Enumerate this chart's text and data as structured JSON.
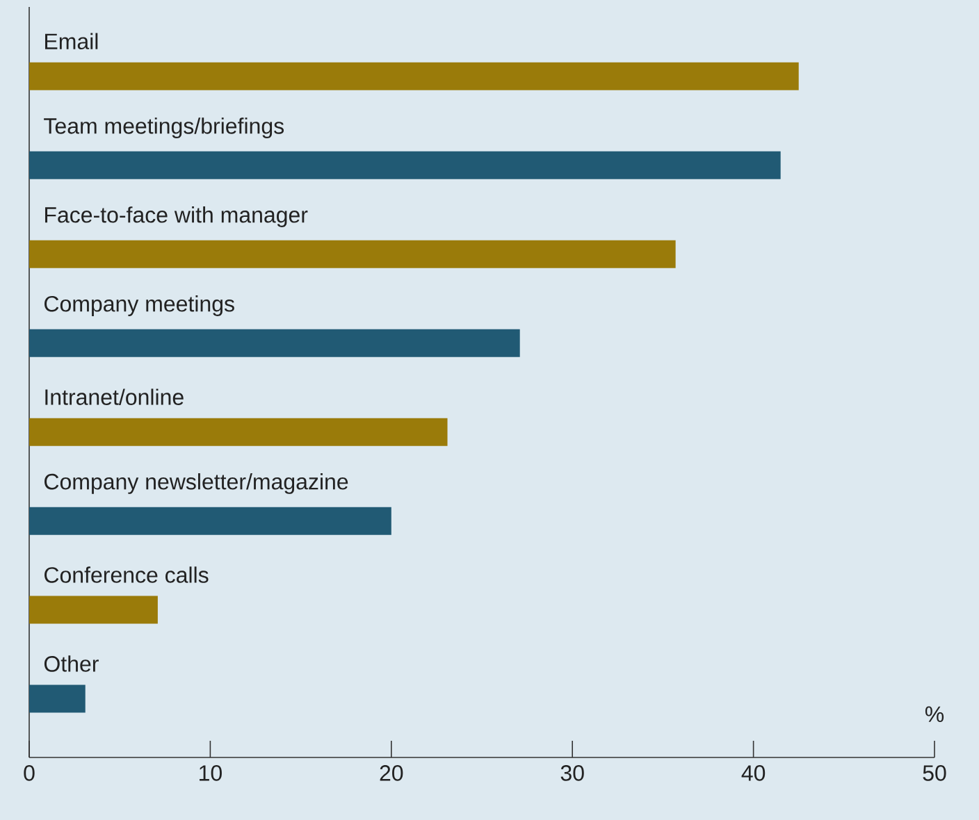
{
  "chart_data": {
    "type": "bar",
    "orientation": "horizontal",
    "categories": [
      "Email",
      "Team meetings/briefings",
      "Face-to-face with manager",
      "Company meetings",
      "Intranet/online",
      "Company newsletter/magazine",
      "Conference calls",
      "Other"
    ],
    "values": [
      42.5,
      41.5,
      35.7,
      27.1,
      23.1,
      20.0,
      7.1,
      3.1
    ],
    "colors": [
      "#9a7b0a",
      "#215a74",
      "#9a7b0a",
      "#215a74",
      "#9a7b0a",
      "#215a74",
      "#9a7b0a",
      "#215a74"
    ],
    "xlim": [
      0,
      50
    ],
    "xticks": [
      0,
      10,
      20,
      30,
      40,
      50
    ],
    "xlabel": "%"
  }
}
